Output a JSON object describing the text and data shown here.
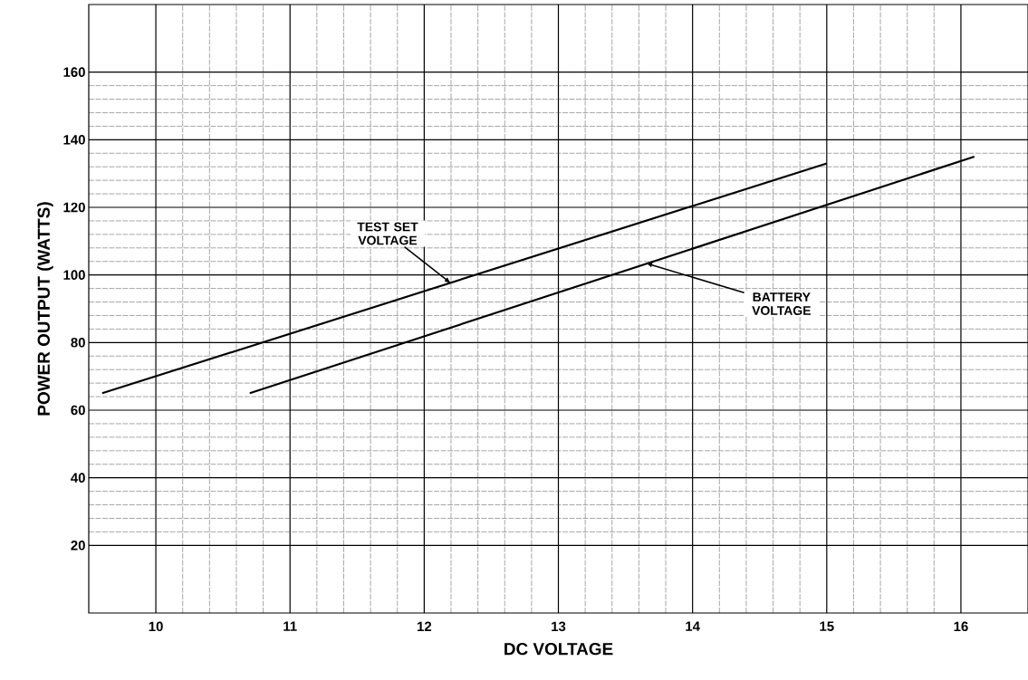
{
  "chart_data": {
    "type": "line",
    "xlabel": "DC VOLTAGE",
    "ylabel": "POWER OUTPUT (WATTS)",
    "xlim": [
      9.5,
      16.5
    ],
    "ylim": [
      0,
      180
    ],
    "xticks": [
      10,
      11,
      12,
      13,
      14,
      15,
      16
    ],
    "yticks": [
      20,
      40,
      60,
      80,
      100,
      120,
      140,
      160
    ],
    "grid": true,
    "marker": "none",
    "line_style": "solid",
    "series": [
      {
        "color": "#000000",
        "x": [
          9.6,
          15.0
        ],
        "values": [
          65,
          133
        ]
      },
      {
        "color": "#000000",
        "x": [
          10.7,
          16.1
        ],
        "values": [
          65,
          135
        ]
      }
    ],
    "annotations": [
      {
        "text": "TEST SET VOLTAGE",
        "x": 12.2,
        "y": 97.5
      },
      {
        "text": "BATTERY VOLTAGE",
        "x": 13.65,
        "y": 103.5
      }
    ]
  }
}
